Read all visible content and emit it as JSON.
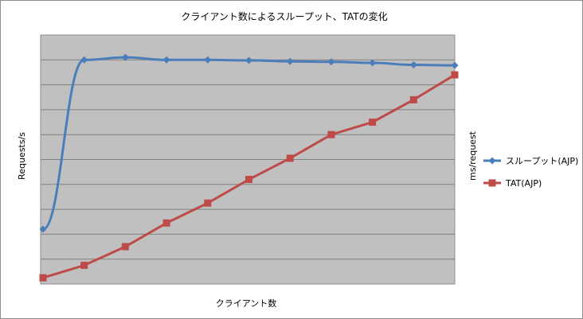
{
  "chart_data": {
    "type": "line",
    "title": "クライアント数によるスループット、TATの変化",
    "xlabel": "クライアント数",
    "ylabel_left": "Requests/s",
    "ylabel_right": "ms/request",
    "grid": true,
    "legend_position": "right",
    "ylim": [
      0,
      10
    ],
    "series": [
      {
        "name": "スループット(AJP)",
        "axis": "left",
        "color": "#4a7ebb",
        "marker": "diamond",
        "values": [
          2.2,
          9.0,
          9.1,
          9.0,
          9.0,
          8.98,
          8.94,
          8.92,
          8.88,
          8.8,
          8.78
        ]
      },
      {
        "name": "TAT(AJP)",
        "axis": "right",
        "color": "#be4b48",
        "marker": "square",
        "values": [
          0.25,
          0.75,
          1.5,
          2.45,
          3.25,
          4.2,
          5.05,
          6.0,
          6.5,
          7.4,
          8.4
        ]
      }
    ]
  }
}
